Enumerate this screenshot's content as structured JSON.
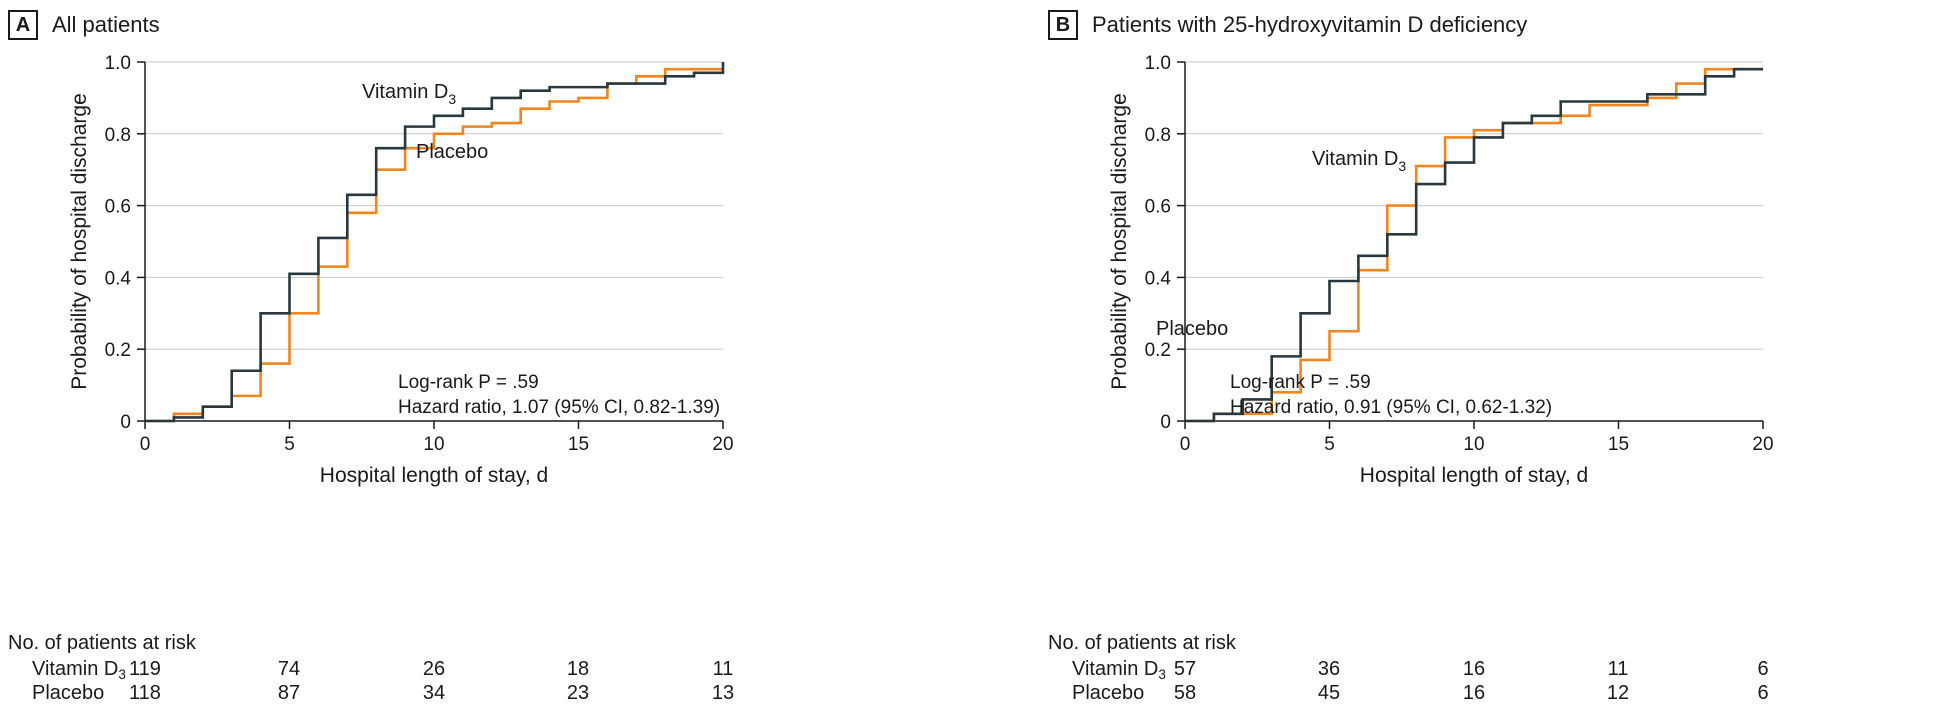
{
  "colors": {
    "vitamin": "#27393f",
    "placebo": "#f0861f",
    "grid": "#c8c8c8",
    "axis": "#1a1a1a"
  },
  "chart_data": [
    {
      "type": "line",
      "subtype": "kaplan-meier-step",
      "panel_letter": "A",
      "title": "All patients",
      "xlabel": "Hospital length of stay, d",
      "ylabel": "Probability of hospital discharge",
      "xlim": [
        0,
        20
      ],
      "ylim": [
        0,
        1.0
      ],
      "xticks": [
        "0",
        "5",
        "10",
        "15",
        "20"
      ],
      "yticks": [
        "0",
        "0.2",
        "0.4",
        "0.6",
        "0.8",
        "1.0"
      ],
      "grid": "horizontal",
      "series": [
        {
          "name": "Vitamin D3",
          "label_text": "Vitamin D",
          "label_sub": "3",
          "color": "#27393f",
          "x": [
            0,
            1,
            2,
            3,
            4,
            5,
            6,
            7,
            8,
            9,
            10,
            11,
            12,
            13,
            14,
            15,
            16,
            17,
            18,
            19,
            20
          ],
          "y": [
            0,
            0.01,
            0.04,
            0.14,
            0.3,
            0.41,
            0.51,
            0.63,
            0.76,
            0.82,
            0.85,
            0.87,
            0.9,
            0.92,
            0.93,
            0.93,
            0.94,
            0.94,
            0.96,
            0.97,
            1.0
          ]
        },
        {
          "name": "Placebo",
          "label_text": "Placebo",
          "color": "#f0861f",
          "x": [
            0,
            1,
            2,
            3,
            4,
            5,
            6,
            7,
            8,
            9,
            10,
            11,
            12,
            13,
            14,
            15,
            16,
            17,
            18,
            19,
            20
          ],
          "y": [
            0,
            0.02,
            0.04,
            0.07,
            0.16,
            0.3,
            0.43,
            0.58,
            0.7,
            0.76,
            0.8,
            0.82,
            0.83,
            0.87,
            0.89,
            0.9,
            0.94,
            0.96,
            0.98,
            0.98,
            0.98
          ]
        }
      ],
      "annotation_lines": [
        "Log-rank P = .59",
        "Hazard ratio, 1.07 (95% CI, 0.82-1.39)"
      ],
      "risk_table": {
        "title": "No. of patients at risk",
        "timepoints": [
          0,
          5,
          10,
          15,
          20
        ],
        "rows": [
          {
            "label": "Vitamin D",
            "label_sub": "3",
            "values": [
              "119",
              "74",
              "26",
              "18",
              "11"
            ]
          },
          {
            "label": "Placebo",
            "values": [
              "118",
              "87",
              "34",
              "23",
              "13"
            ]
          }
        ]
      }
    },
    {
      "type": "line",
      "subtype": "kaplan-meier-step",
      "panel_letter": "B",
      "title": "Patients with 25-hydroxyvitamin D deficiency",
      "xlabel": "Hospital length of stay, d",
      "ylabel": "Probability of hospital discharge",
      "xlim": [
        0,
        20
      ],
      "ylim": [
        0,
        1.0
      ],
      "xticks": [
        "0",
        "5",
        "10",
        "15",
        "20"
      ],
      "yticks": [
        "0",
        "0.2",
        "0.4",
        "0.6",
        "0.8",
        "1.0"
      ],
      "grid": "horizontal",
      "series": [
        {
          "name": "Vitamin D3",
          "label_text": "Vitamin D",
          "label_sub": "3",
          "color": "#27393f",
          "x": [
            0,
            1,
            2,
            3,
            4,
            5,
            6,
            7,
            8,
            9,
            10,
            11,
            12,
            13,
            14,
            15,
            16,
            17,
            18,
            19,
            20
          ],
          "y": [
            0,
            0.02,
            0.06,
            0.18,
            0.3,
            0.39,
            0.46,
            0.52,
            0.66,
            0.72,
            0.79,
            0.83,
            0.85,
            0.89,
            0.89,
            0.89,
            0.91,
            0.91,
            0.96,
            0.98,
            0.98
          ]
        },
        {
          "name": "Placebo",
          "label_text": "Placebo",
          "color": "#f0861f",
          "x": [
            0,
            1,
            2,
            3,
            4,
            5,
            6,
            7,
            8,
            9,
            10,
            11,
            12,
            13,
            14,
            15,
            16,
            17,
            18,
            19,
            20
          ],
          "y": [
            0,
            0.02,
            0.02,
            0.08,
            0.17,
            0.25,
            0.42,
            0.6,
            0.71,
            0.79,
            0.81,
            0.83,
            0.83,
            0.85,
            0.88,
            0.88,
            0.9,
            0.94,
            0.98,
            0.98,
            0.98
          ]
        }
      ],
      "annotation_lines": [
        "Log-rank P = .59",
        "Hazard ratio, 0.91 (95% CI, 0.62-1.32)"
      ],
      "risk_table": {
        "title": "No. of patients at risk",
        "timepoints": [
          0,
          5,
          10,
          15,
          20
        ],
        "rows": [
          {
            "label": "Vitamin D",
            "label_sub": "3",
            "values": [
              "57",
              "36",
              "16",
              "11",
              "6"
            ]
          },
          {
            "label": "Placebo",
            "values": [
              "58",
              "45",
              "16",
              "12",
              "6"
            ]
          }
        ]
      }
    }
  ]
}
